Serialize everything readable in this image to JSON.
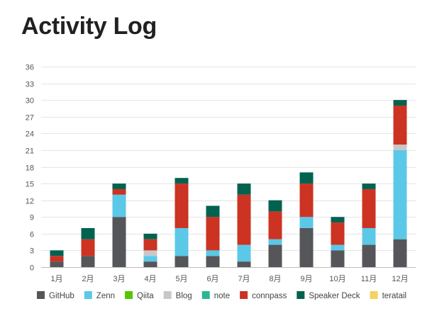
{
  "page": {
    "title": "Activity Log"
  },
  "chart_data": {
    "type": "bar",
    "stacked": true,
    "categories": [
      "1月",
      "2月",
      "3月",
      "4月",
      "5月",
      "6月",
      "7月",
      "8月",
      "9月",
      "10月",
      "11月",
      "12月"
    ],
    "ylim": [
      0,
      36
    ],
    "yticks": [
      0,
      3,
      6,
      9,
      12,
      15,
      18,
      21,
      24,
      27,
      30,
      33,
      36
    ],
    "grid": true,
    "legend_position": "bottom",
    "series": [
      {
        "name": "GitHub",
        "color": "#555659",
        "values": [
          1,
          2,
          9,
          1,
          2,
          2,
          1,
          4,
          7,
          3,
          4,
          5
        ]
      },
      {
        "name": "Zenn",
        "color": "#5bc8e8",
        "values": [
          0,
          0,
          4,
          1,
          5,
          1,
          3,
          1,
          2,
          1,
          3,
          16
        ]
      },
      {
        "name": "Qiita",
        "color": "#55c500",
        "values": [
          0,
          0,
          0,
          0,
          0,
          0,
          0,
          0,
          0,
          0,
          0,
          0
        ]
      },
      {
        "name": "Blog",
        "color": "#c8c8c8",
        "values": [
          0,
          0,
          0,
          1,
          0,
          0,
          0,
          0,
          0,
          0,
          0,
          1
        ]
      },
      {
        "name": "note",
        "color": "#2cb696",
        "values": [
          0,
          0,
          0,
          0,
          0,
          0,
          0,
          0,
          0,
          0,
          0,
          0
        ]
      },
      {
        "name": "connpass",
        "color": "#cc3322",
        "values": [
          1,
          3,
          1,
          2,
          8,
          6,
          9,
          5,
          6,
          4,
          7,
          7
        ]
      },
      {
        "name": "Speaker Deck",
        "color": "#00624f",
        "values": [
          1,
          2,
          1,
          1,
          1,
          2,
          2,
          2,
          2,
          1,
          1,
          1
        ]
      },
      {
        "name": "teratail",
        "color": "#f4d35e",
        "values": [
          0,
          0,
          0,
          0,
          0,
          0,
          0,
          0,
          0,
          0,
          0,
          0
        ]
      }
    ]
  }
}
